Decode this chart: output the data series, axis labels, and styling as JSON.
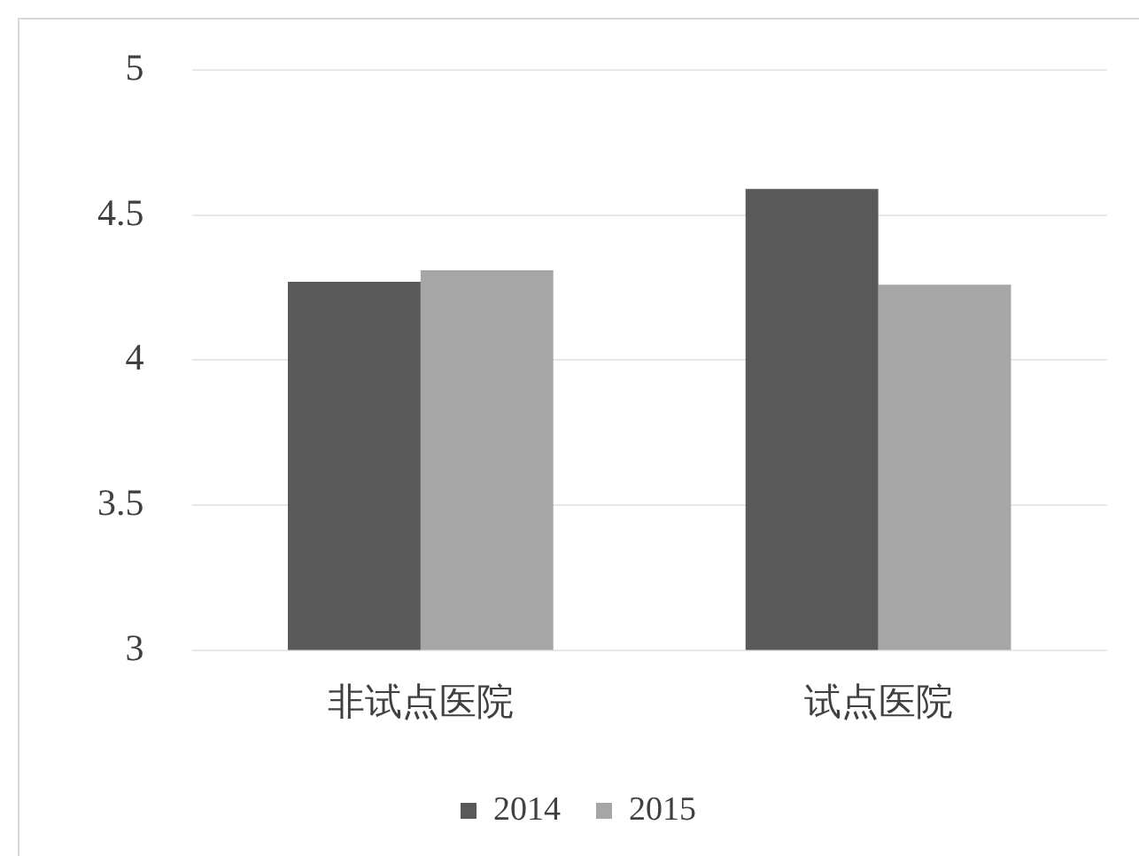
{
  "chart_data": {
    "type": "bar",
    "categories": [
      "非试点医院",
      "试点医院"
    ],
    "series": [
      {
        "name": "2014",
        "color": "#595959",
        "values": [
          4.27,
          4.59
        ]
      },
      {
        "name": "2015",
        "color": "#a6a6a6",
        "values": [
          4.31,
          4.26
        ]
      }
    ],
    "ylim": [
      3,
      5
    ],
    "yticks": [
      3,
      3.5,
      4,
      4.5,
      5
    ],
    "grid": "y",
    "legend": "bottom"
  }
}
